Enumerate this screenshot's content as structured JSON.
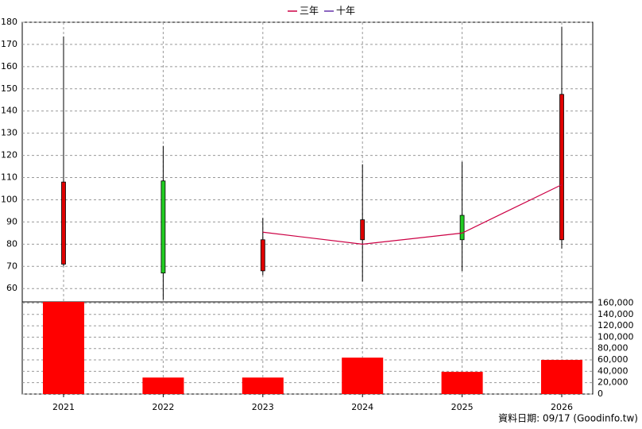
{
  "chart_data": [
    {
      "type": "candlestick",
      "categories": [
        "2021",
        "2022",
        "2023",
        "2024",
        "2025",
        "2026"
      ],
      "open": [
        71,
        108.5,
        68,
        82,
        93,
        82
      ],
      "high": [
        173.6,
        124.3,
        91.8,
        116,
        117.1,
        178
      ],
      "low": [
        70,
        55,
        66,
        63.2,
        67.9,
        78
      ],
      "close": [
        108,
        67,
        82,
        91,
        82,
        147.5
      ],
      "up_color": "#e00000",
      "down_color": "#22cc22",
      "series": [
        {
          "name": "三年",
          "color": "#cc0044",
          "values": [
            null,
            null,
            85.4,
            80,
            85,
            106.8
          ]
        },
        {
          "name": "十年",
          "color": "#6633aa",
          "values": [
            null,
            null,
            null,
            null,
            null,
            null
          ]
        }
      ],
      "ylim": [
        54,
        180
      ],
      "yticks": [
        60,
        70,
        80,
        90,
        100,
        110,
        120,
        130,
        140,
        150,
        160,
        170,
        180
      ],
      "grid": true,
      "legend": "top"
    },
    {
      "type": "bar",
      "values": [
        162000,
        29000,
        29000,
        64000,
        39000,
        60000
      ],
      "color": "#ff0000",
      "ylim": [
        0,
        162000
      ],
      "yticks": [
        0,
        {
          "value": 20000,
          "label": "20,000"
        },
        {
          "value": 40000,
          "label": "40,000"
        },
        {
          "value": 60000,
          "label": "60,000"
        },
        {
          "value": 80000,
          "label": "80,000"
        },
        {
          "value": 100000,
          "label": "100,000"
        },
        {
          "value": 120000,
          "label": "120,000"
        },
        {
          "value": 140000,
          "label": "140,000"
        },
        {
          "value": 160000,
          "label": "160,000"
        }
      ],
      "grid": true,
      "source": "資料日期: 09/17  (Goodinfo.tw)"
    }
  ]
}
